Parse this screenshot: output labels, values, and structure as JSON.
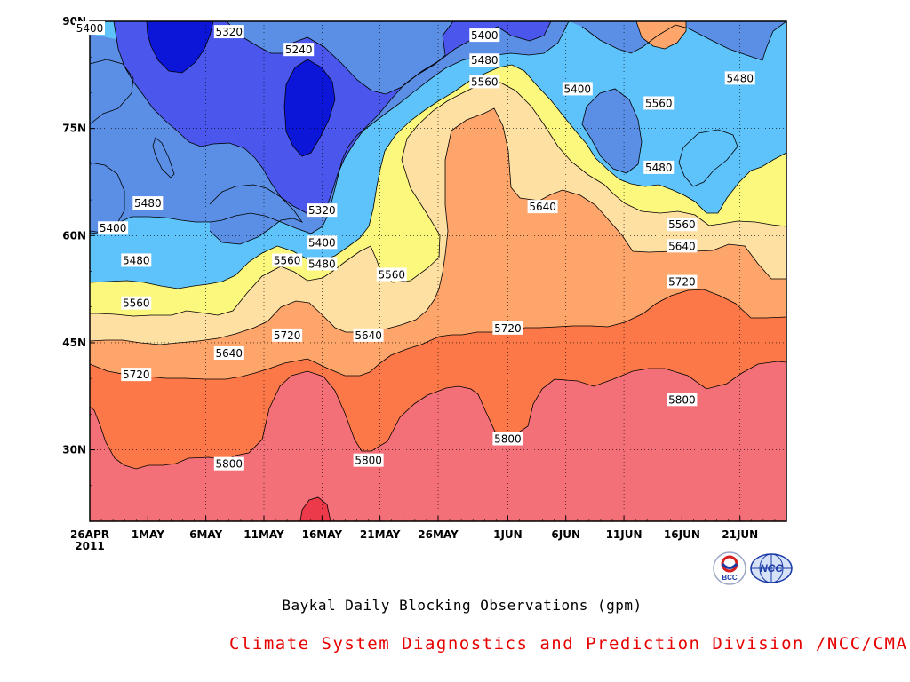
{
  "chart_data": {
    "type": "filled-contour",
    "title": "Baykal Daily Blocking Observations (gpm)",
    "credit": "Climate System Diagnostics and Prediction Division /NCC/CMA",
    "year_label": "2011",
    "x_axis": {
      "type": "date",
      "range": [
        "2011-04-26",
        "2011-06-25"
      ],
      "ticks": [
        {
          "date": "2011-04-26",
          "label": "26APR"
        },
        {
          "date": "2011-05-01",
          "label": "1MAY"
        },
        {
          "date": "2011-05-06",
          "label": "6MAY"
        },
        {
          "date": "2011-05-11",
          "label": "11MAY"
        },
        {
          "date": "2011-05-16",
          "label": "16MAY"
        },
        {
          "date": "2011-05-21",
          "label": "21MAY"
        },
        {
          "date": "2011-05-26",
          "label": "26MAY"
        },
        {
          "date": "2011-06-01",
          "label": "1JUN"
        },
        {
          "date": "2011-06-06",
          "label": "6JUN"
        },
        {
          "date": "2011-06-11",
          "label": "11JUN"
        },
        {
          "date": "2011-06-16",
          "label": "16JUN"
        },
        {
          "date": "2011-06-21",
          "label": "21JUN"
        }
      ]
    },
    "y_axis": {
      "unit": "degrees N",
      "range": [
        20,
        90
      ],
      "ticks": [
        {
          "value": 30,
          "label": "30N"
        },
        {
          "value": 45,
          "label": "45N"
        },
        {
          "value": 60,
          "label": "60N"
        },
        {
          "value": 75,
          "label": "75N"
        },
        {
          "value": 90,
          "label": "90N"
        }
      ]
    },
    "grid": "dotted",
    "levels": [
      5240,
      5320,
      5400,
      5480,
      5560,
      5640,
      5720,
      5800
    ],
    "colors": {
      "below_5240": "#0b16d8",
      "5240_5320": "#4b57ec",
      "5320_5400": "#5a8fe5",
      "5400_5480": "#5ec2fb",
      "5480_5560": "#fcf87d",
      "5560_5640": "#fee0a2",
      "5640_5720": "#fda56a",
      "5720_5800": "#fd7848",
      "5800_5880": "#f47079",
      "above_5880": "#ec3a4a"
    },
    "contour_labels": [
      {
        "date": "2011-04-26",
        "lat": 89.0,
        "value": 5400
      },
      {
        "date": "2011-05-08",
        "lat": 88.5,
        "value": 5320
      },
      {
        "date": "2011-05-14",
        "lat": 86.0,
        "value": 5240
      },
      {
        "date": "2011-05-30",
        "lat": 88.0,
        "value": 5400
      },
      {
        "date": "2011-05-30",
        "lat": 84.5,
        "value": 5480
      },
      {
        "date": "2011-05-30",
        "lat": 81.5,
        "value": 5560
      },
      {
        "date": "2011-06-07",
        "lat": 80.5,
        "value": 5400
      },
      {
        "date": "2011-06-21",
        "lat": 82.0,
        "value": 5480
      },
      {
        "date": "2011-06-14",
        "lat": 78.5,
        "value": 5560
      },
      {
        "date": "2011-06-14",
        "lat": 69.5,
        "value": 5480
      },
      {
        "date": "2011-05-01",
        "lat": 64.5,
        "value": 5480
      },
      {
        "date": "2011-04-28",
        "lat": 61.0,
        "value": 5400
      },
      {
        "date": "2011-05-16",
        "lat": 63.5,
        "value": 5320
      },
      {
        "date": "2011-05-16",
        "lat": 59.0,
        "value": 5400
      },
      {
        "date": "2011-05-16",
        "lat": 56.0,
        "value": 5480
      },
      {
        "date": "2011-05-13",
        "lat": 56.5,
        "value": 5560
      },
      {
        "date": "2011-04-30",
        "lat": 56.5,
        "value": 5480
      },
      {
        "date": "2011-04-30",
        "lat": 50.5,
        "value": 5560
      },
      {
        "date": "2011-05-22",
        "lat": 54.5,
        "value": 5560
      },
      {
        "date": "2011-06-04",
        "lat": 64.0,
        "value": 5640
      },
      {
        "date": "2011-06-16",
        "lat": 61.5,
        "value": 5560
      },
      {
        "date": "2011-06-16",
        "lat": 58.5,
        "value": 5640
      },
      {
        "date": "2011-06-16",
        "lat": 53.5,
        "value": 5720
      },
      {
        "date": "2011-05-13",
        "lat": 46.0,
        "value": 5720
      },
      {
        "date": "2011-05-20",
        "lat": 46.0,
        "value": 5640
      },
      {
        "date": "2011-05-08",
        "lat": 43.5,
        "value": 5640
      },
      {
        "date": "2011-06-01",
        "lat": 47.0,
        "value": 5720
      },
      {
        "date": "2011-04-30",
        "lat": 40.5,
        "value": 5720
      },
      {
        "date": "2011-06-16",
        "lat": 37.0,
        "value": 5800
      },
      {
        "date": "2011-06-01",
        "lat": 31.5,
        "value": 5800
      },
      {
        "date": "2011-05-20",
        "lat": 28.5,
        "value": 5800
      },
      {
        "date": "2011-05-08",
        "lat": 28.0,
        "value": 5800
      }
    ]
  },
  "logos": [
    {
      "icon": "bcc-logo-icon",
      "text": "BCC"
    },
    {
      "icon": "ncc-logo-icon",
      "text": "NCC"
    }
  ]
}
